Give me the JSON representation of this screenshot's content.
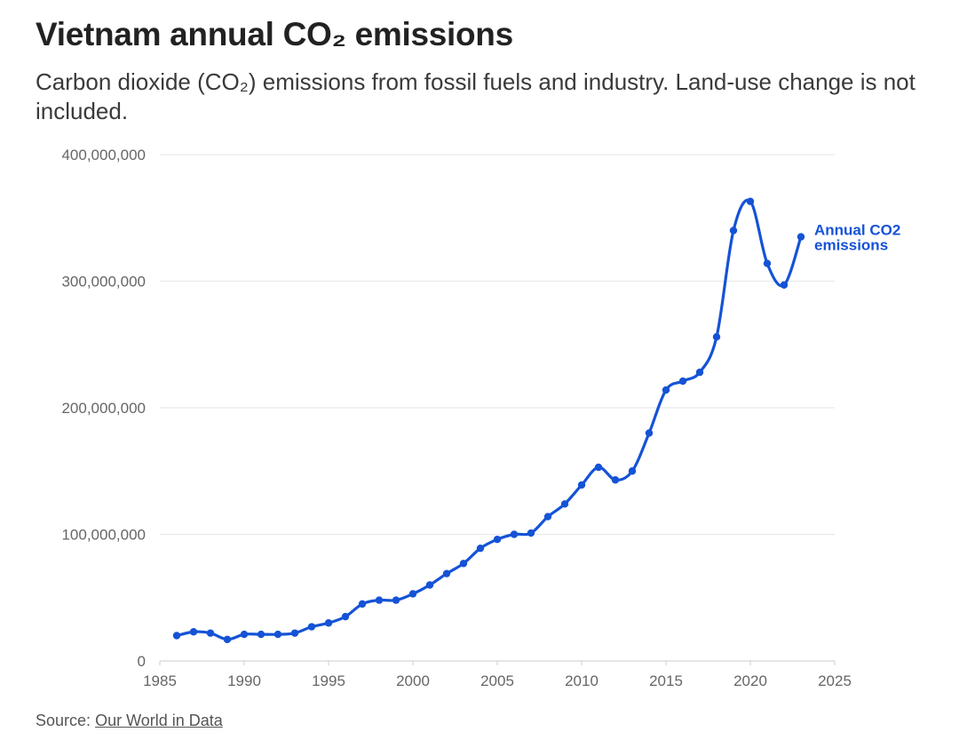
{
  "header": {
    "title": "Vietnam annual CO₂ emissions",
    "subtitle": "Carbon dioxide (CO₂) emissions from fossil fuels and industry. Land-use change is not included."
  },
  "footer": {
    "source_prefix": "Source:",
    "source_link": "Our World in Data"
  },
  "colors": {
    "series": "#1553d6",
    "grid": "#e6e6e6",
    "axis": "#cccccc"
  },
  "chart_data": {
    "type": "line",
    "xlim": [
      1985,
      2025
    ],
    "ylim": [
      0,
      400000000
    ],
    "x_ticks": [
      1985,
      1990,
      1995,
      2000,
      2005,
      2010,
      2015,
      2020,
      2025
    ],
    "y_ticks": [
      0,
      100000000,
      200000000,
      300000000,
      400000000
    ],
    "y_tick_labels": [
      "0",
      "100,000,000",
      "200,000,000",
      "300,000,000",
      "400,000,000"
    ],
    "grid": "horizontal",
    "series": [
      {
        "name": "Annual CO2 emissions",
        "label_lines": [
          "Annual CO2",
          "emissions"
        ],
        "x": [
          1986,
          1987,
          1988,
          1989,
          1990,
          1991,
          1992,
          1993,
          1994,
          1995,
          1996,
          1997,
          1998,
          1999,
          2000,
          2001,
          2002,
          2003,
          2004,
          2005,
          2006,
          2007,
          2008,
          2009,
          2010,
          2011,
          2012,
          2013,
          2014,
          2015,
          2016,
          2017,
          2018,
          2019,
          2020,
          2021,
          2022,
          2023
        ],
        "values": [
          20000000,
          23000000,
          22000000,
          17000000,
          21000000,
          21000000,
          21000000,
          22000000,
          27000000,
          30000000,
          35000000,
          45000000,
          48000000,
          48000000,
          53000000,
          60000000,
          69000000,
          77000000,
          89000000,
          96000000,
          100000000,
          101000000,
          114000000,
          124000000,
          139000000,
          153000000,
          143000000,
          150000000,
          180000000,
          214000000,
          221000000,
          228000000,
          256000000,
          340000000,
          363000000,
          314000000,
          297000000,
          335000000
        ]
      }
    ]
  }
}
